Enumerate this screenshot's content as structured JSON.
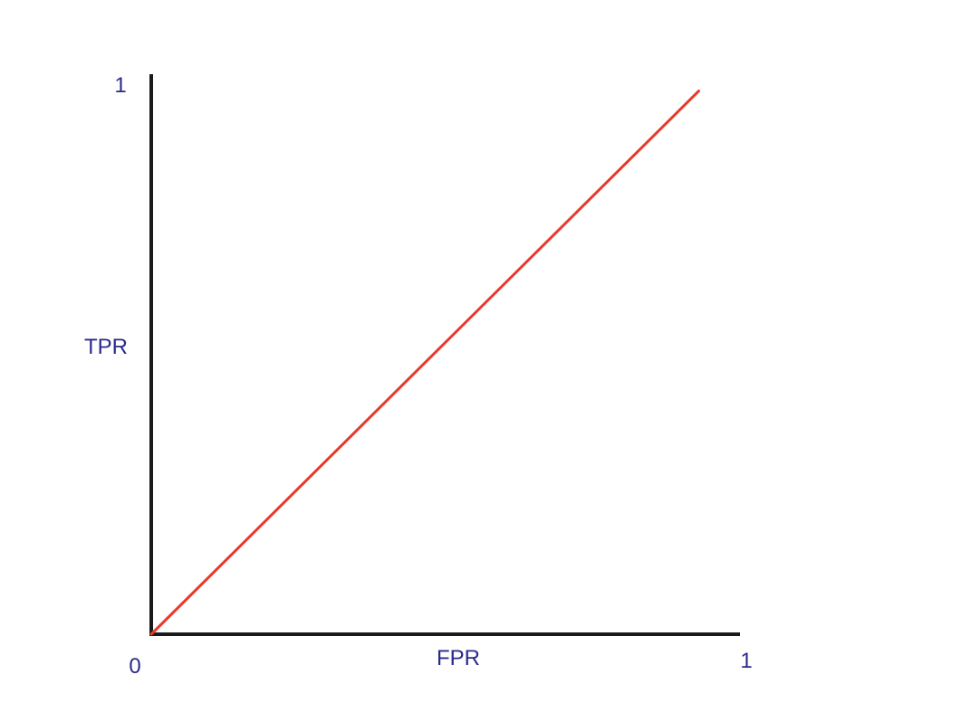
{
  "chart_data": {
    "type": "line",
    "title": "",
    "xlabel": "FPR",
    "ylabel": "TPR",
    "xlim": [
      0,
      1
    ],
    "ylim": [
      0,
      1
    ],
    "grid": false,
    "series": [
      {
        "x": [
          0,
          0.93
        ],
        "y": [
          0,
          0.97
        ]
      }
    ],
    "tick_labels": {
      "origin": "0",
      "x_max": "1",
      "y_max": "1"
    },
    "colors": {
      "series_line": "#e8392a",
      "axes": "#1a1a1a",
      "labels": "#2a2a8c"
    }
  }
}
